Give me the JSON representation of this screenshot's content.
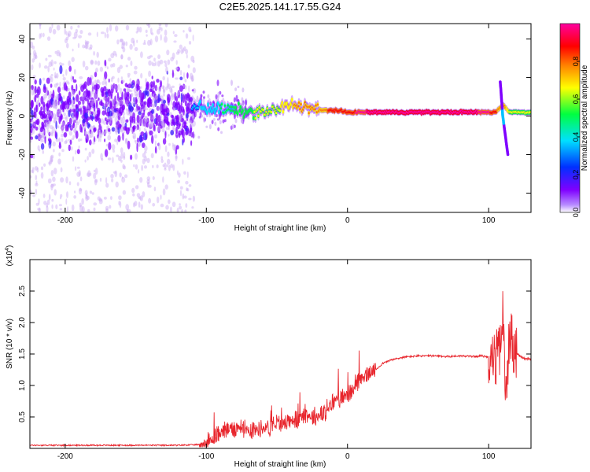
{
  "title": "C2E5.2025.141.17.55.G24",
  "chart_data": [
    {
      "type": "heatmap",
      "xlabel": "Height of straight line (km)",
      "ylabel": "Frequency (Hz)",
      "xlim": [
        -225,
        130
      ],
      "ylim": [
        -50,
        48
      ],
      "xticks": [
        -200,
        -100,
        0,
        100
      ],
      "yticks": [
        -40,
        -20,
        0,
        20,
        40
      ],
      "colorbar": {
        "label": "Normalized spectral amplitude",
        "range": [
          0,
          1
        ],
        "ticks": [
          0.0,
          0.2,
          0.4,
          0.6,
          0.8
        ],
        "tick_labels": [
          "0.0",
          "0.2",
          "0.4",
          "0.6",
          "0.8"
        ],
        "colors": [
          "#ffffff",
          "#7f00ff",
          "#0040ff",
          "#00ffff",
          "#00ff40",
          "#ffff00",
          "#ff7f00",
          "#ff0000",
          "#ff00ff"
        ]
      },
      "ridge": {
        "x": [
          -110,
          -95,
          -80,
          -70,
          -60,
          -50,
          -40,
          -30,
          -20,
          -10,
          0,
          10,
          20,
          40,
          60,
          80,
          100,
          105,
          110,
          115,
          120,
          130
        ],
        "freq": [
          5,
          4,
          3,
          2,
          2,
          3,
          6,
          5,
          3,
          3,
          2,
          2,
          2,
          2,
          2,
          2,
          2,
          2,
          6,
          2,
          2,
          2
        ],
        "amplitude": [
          0.25,
          0.35,
          0.45,
          0.5,
          0.55,
          0.6,
          0.65,
          0.7,
          0.75,
          0.8,
          0.85,
          0.9,
          0.95,
          0.95,
          0.95,
          0.95,
          0.9,
          0.8,
          0.7,
          0.6,
          0.6,
          0.55
        ]
      }
    },
    {
      "type": "line",
      "xlabel": "Height of straight line (km)",
      "ylabel": "SNR (10 * v/v)",
      "y_multiplier": "(x10",
      "y_multiplier_exp": "4",
      "y_multiplier_close": ")",
      "xlim": [
        -225,
        130
      ],
      "ylim": [
        0,
        3.0
      ],
      "xticks": [
        -200,
        -100,
        0,
        100
      ],
      "yticks": [
        0.5,
        1.0,
        1.5,
        2.0,
        2.5
      ],
      "ytick_labels": [
        "0.5",
        "1.0",
        "1.5",
        "2.0",
        "2.5"
      ],
      "color": "#e8262d",
      "series": [
        {
          "x": [
            -225,
            -200,
            -150,
            -120,
            -105,
            -100,
            -95,
            -90,
            -85,
            -80,
            -75,
            -70,
            -65,
            -60,
            -55,
            -50,
            -45,
            -40,
            -35,
            -30,
            -25,
            -20,
            -15,
            -10,
            -5,
            0,
            5,
            10,
            15,
            20,
            25,
            30,
            40,
            50,
            60,
            70,
            80,
            90,
            95,
            100,
            105,
            108,
            110,
            112,
            115,
            118,
            120,
            125,
            130
          ],
          "y": [
            0.05,
            0.05,
            0.05,
            0.05,
            0.06,
            0.08,
            0.15,
            0.25,
            0.3,
            0.32,
            0.35,
            0.3,
            0.3,
            0.32,
            0.35,
            0.38,
            0.4,
            0.45,
            0.45,
            0.55,
            0.5,
            0.52,
            0.55,
            0.75,
            0.8,
            0.85,
            0.95,
            1.1,
            1.2,
            1.25,
            1.35,
            1.4,
            1.45,
            1.47,
            1.47,
            1.46,
            1.47,
            1.46,
            1.47,
            1.45,
            1.4,
            1.6,
            2.1,
            0.8,
            1.9,
            1.6,
            1.5,
            1.43,
            1.42
          ]
        }
      ]
    }
  ]
}
